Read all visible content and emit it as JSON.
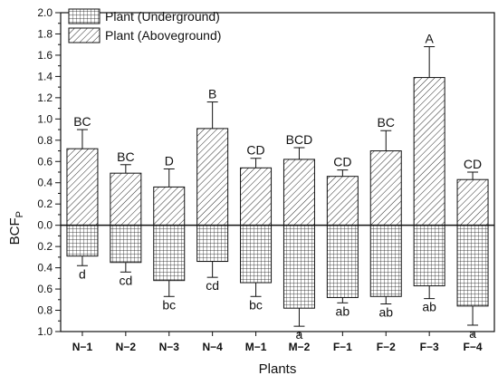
{
  "chart_data": {
    "type": "bar",
    "xlabel": "Plants",
    "ylabel_main": "BCF",
    "ylabel_sub": "P",
    "categories": [
      "N−1",
      "N−2",
      "N−3",
      "N−4",
      "M−1",
      "M−2",
      "F−1",
      "F−2",
      "F−3",
      "F−4"
    ],
    "ylim": [
      -1.0,
      2.0
    ],
    "yticks": [
      {
        "value": 2.0,
        "label": "2.0"
      },
      {
        "value": 1.8,
        "label": "1.8"
      },
      {
        "value": 1.6,
        "label": "1.6"
      },
      {
        "value": 1.4,
        "label": "1.4"
      },
      {
        "value": 1.2,
        "label": "1.2"
      },
      {
        "value": 1.0,
        "label": "1.0"
      },
      {
        "value": 0.8,
        "label": "0.8"
      },
      {
        "value": 0.6,
        "label": "0.6"
      },
      {
        "value": 0.4,
        "label": "0.4"
      },
      {
        "value": 0.2,
        "label": "0.2"
      },
      {
        "value": 0.0,
        "label": "0.0"
      },
      {
        "value": -0.2,
        "label": "0.2"
      },
      {
        "value": -0.4,
        "label": "0.4"
      },
      {
        "value": -0.6,
        "label": "0.6"
      },
      {
        "value": -0.8,
        "label": "0.8"
      },
      {
        "value": -1.0,
        "label": "1.0"
      }
    ],
    "legend_position": "top-left",
    "series": [
      {
        "name": "Plant (Underground)",
        "pattern": "grid",
        "values": [
          0.29,
          0.35,
          0.52,
          0.34,
          0.54,
          0.78,
          0.68,
          0.67,
          0.57,
          0.76
        ],
        "errors": [
          0.09,
          0.09,
          0.15,
          0.15,
          0.13,
          0.17,
          0.05,
          0.07,
          0.12,
          0.18
        ],
        "labels": [
          "d",
          "cd",
          "bc",
          "cd",
          "bc",
          "a",
          "ab",
          "ab",
          "ab",
          "a"
        ]
      },
      {
        "name": "Plant (Aboveground)",
        "pattern": "diagonal",
        "values": [
          0.72,
          0.49,
          0.36,
          0.91,
          0.54,
          0.62,
          0.46,
          0.7,
          1.39,
          0.43
        ],
        "errors": [
          0.18,
          0.08,
          0.17,
          0.25,
          0.09,
          0.11,
          0.06,
          0.19,
          0.29,
          0.07
        ],
        "labels": [
          "BC",
          "BC",
          "D",
          "B",
          "CD",
          "BCD",
          "CD",
          "BC",
          "A",
          "CD"
        ]
      }
    ],
    "colors": {
      "bar_fill": "#ffffff",
      "stroke": "#111111"
    }
  }
}
